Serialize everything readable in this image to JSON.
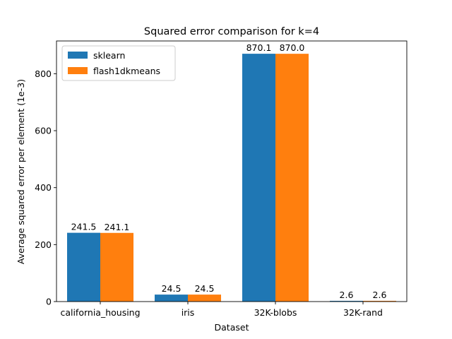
{
  "chart_data": {
    "type": "bar",
    "title": "Squared error comparison for k=4",
    "xlabel": "Dataset",
    "ylabel": "Average squared error per element (1e-3)",
    "categories": [
      "california_housing",
      "iris",
      "32K-blobs",
      "32K-rand"
    ],
    "series": [
      {
        "name": "sklearn",
        "color": "#1f77b4",
        "values": [
          241.5,
          24.5,
          870.1,
          2.6
        ],
        "labels": [
          "241.5",
          "24.5",
          "870.1",
          "2.6"
        ]
      },
      {
        "name": "flash1dkmeans",
        "color": "#ff7f0e",
        "values": [
          241.1,
          24.5,
          870.0,
          2.6
        ],
        "labels": [
          "241.1",
          "24.5",
          "870.0",
          "2.6"
        ]
      }
    ],
    "ylim": [
      0,
      915
    ],
    "yticks": [
      0,
      200,
      400,
      600,
      800
    ],
    "legend": "top-left",
    "grid": false
  }
}
